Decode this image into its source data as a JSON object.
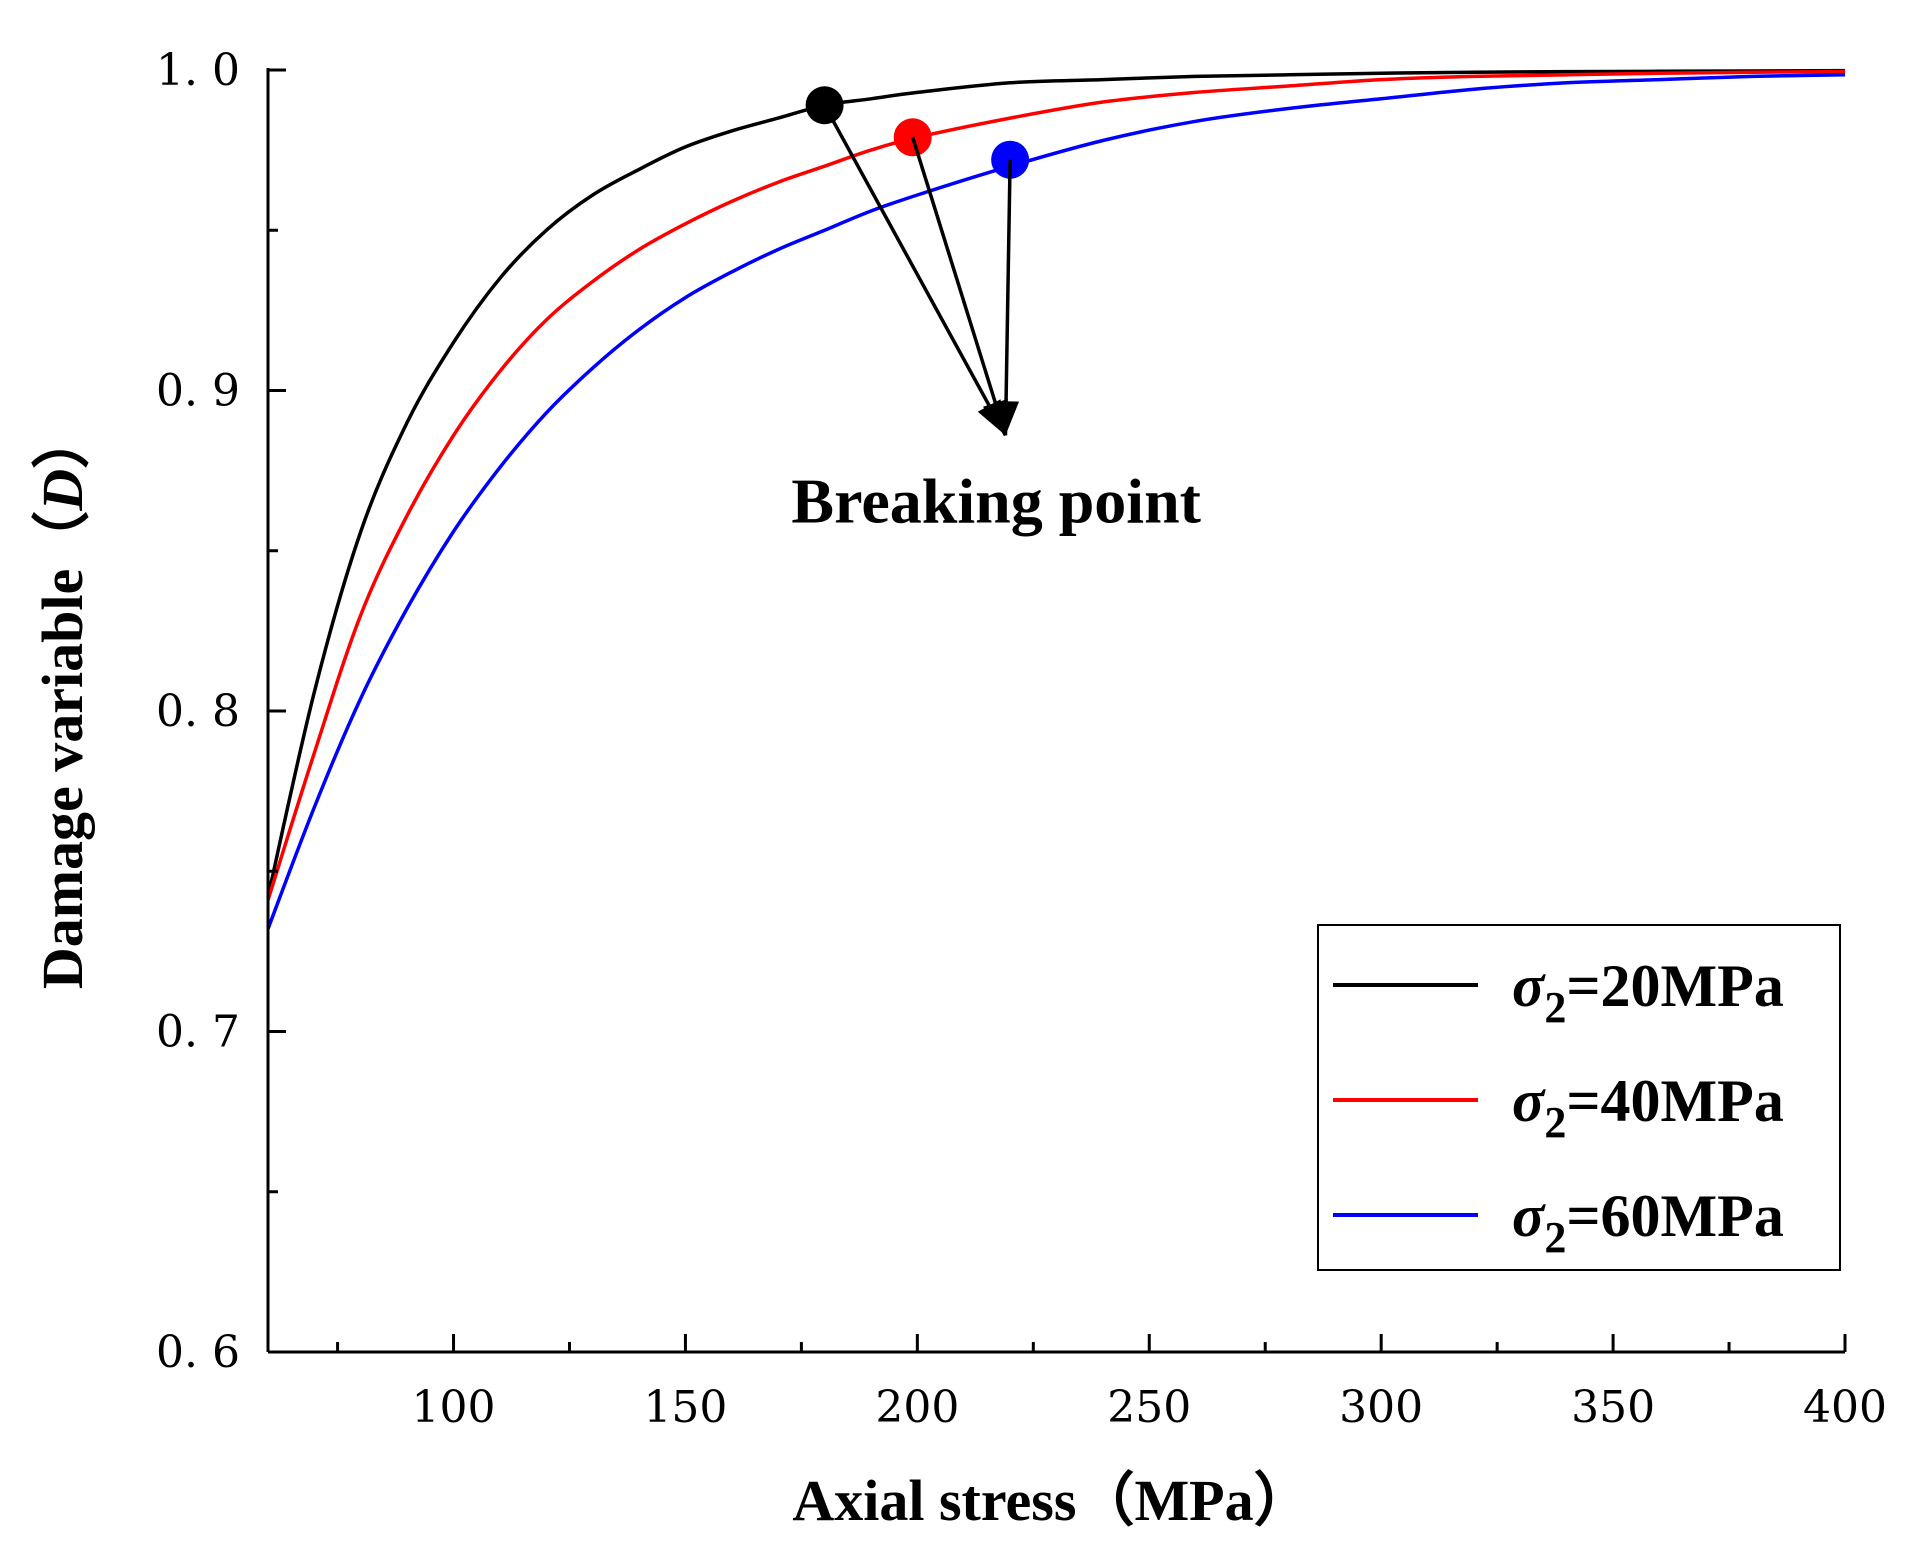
{
  "chart_data": {
    "type": "line",
    "xlabel": "Axial stress（MPa）",
    "ylabel_main": "Damage variable（",
    "ylabel_var": "D",
    "ylabel_close": "）",
    "xlim": [
      60,
      400
    ],
    "ylim": [
      0.6,
      1.0
    ],
    "x_ticks": [
      100,
      150,
      200,
      250,
      300,
      350,
      400
    ],
    "x_tick_labels": [
      "100",
      "150",
      "200",
      "250",
      "300",
      "350",
      "400"
    ],
    "x_minor_ticks": [
      75,
      125,
      175,
      225,
      275,
      325,
      375
    ],
    "y_ticks": [
      0.6,
      0.7,
      0.8,
      0.9,
      1.0
    ],
    "y_tick_labels": [
      "0. 6",
      "0. 7",
      "0. 8",
      "0. 9",
      "1. 0"
    ],
    "y_minor_ticks": [
      0.65,
      0.75,
      0.85,
      0.95
    ],
    "grid": false,
    "legend_position": "bottom-right",
    "series": [
      {
        "name": "σ2=20MPa",
        "legend_sigma": "σ",
        "legend_sub": "2",
        "legend_rest": "=20MPa",
        "color": "#000000",
        "x": [
          60,
          70,
          80,
          90,
          100,
          110,
          120,
          130,
          140,
          150,
          160,
          170,
          180,
          190,
          200,
          220,
          240,
          260,
          280,
          300,
          320,
          340,
          360,
          380,
          400
        ],
        "y": [
          0.742,
          0.806,
          0.856,
          0.89,
          0.915,
          0.935,
          0.95,
          0.961,
          0.969,
          0.976,
          0.981,
          0.985,
          0.989,
          0.991,
          0.993,
          0.996,
          0.997,
          0.998,
          0.9985,
          0.999,
          0.9993,
          0.9995,
          0.9996,
          0.9997,
          0.9998
        ]
      },
      {
        "name": "σ2=40MPa",
        "legend_sigma": "σ",
        "legend_sub": "2",
        "legend_rest": "=40MPa",
        "color": "#ff0000",
        "x": [
          60,
          70,
          80,
          90,
          100,
          110,
          120,
          130,
          140,
          150,
          160,
          170,
          180,
          190,
          200,
          220,
          240,
          260,
          280,
          300,
          320,
          340,
          360,
          380,
          400
        ],
        "y": [
          0.741,
          0.787,
          0.83,
          0.861,
          0.886,
          0.906,
          0.922,
          0.934,
          0.944,
          0.952,
          0.959,
          0.965,
          0.97,
          0.975,
          0.979,
          0.985,
          0.99,
          0.993,
          0.995,
          0.997,
          0.998,
          0.9985,
          0.999,
          0.9993,
          0.9995
        ]
      },
      {
        "name": "σ2=60MPa",
        "legend_sigma": "σ",
        "legend_sub": "2",
        "legend_rest": "=60MPa",
        "color": "#0000ff",
        "x": [
          60,
          70,
          80,
          90,
          100,
          110,
          120,
          130,
          140,
          150,
          160,
          170,
          180,
          190,
          200,
          220,
          240,
          260,
          280,
          300,
          320,
          340,
          360,
          380,
          400
        ],
        "y": [
          0.732,
          0.77,
          0.804,
          0.832,
          0.856,
          0.876,
          0.893,
          0.907,
          0.919,
          0.929,
          0.937,
          0.944,
          0.95,
          0.956,
          0.961,
          0.97,
          0.978,
          0.984,
          0.988,
          0.991,
          0.994,
          0.996,
          0.997,
          0.998,
          0.9985
        ]
      }
    ],
    "breaking_points": [
      {
        "x": 180,
        "y": 0.989,
        "color": "#000000"
      },
      {
        "x": 199,
        "y": 0.979,
        "color": "#ff0000"
      },
      {
        "x": 220,
        "y": 0.972,
        "color": "#0000ff"
      }
    ],
    "arrow_target": {
      "x": 219,
      "y": 0.886
    },
    "annotation": {
      "text": "Breaking point",
      "x": 217,
      "y": 0.865
    }
  }
}
